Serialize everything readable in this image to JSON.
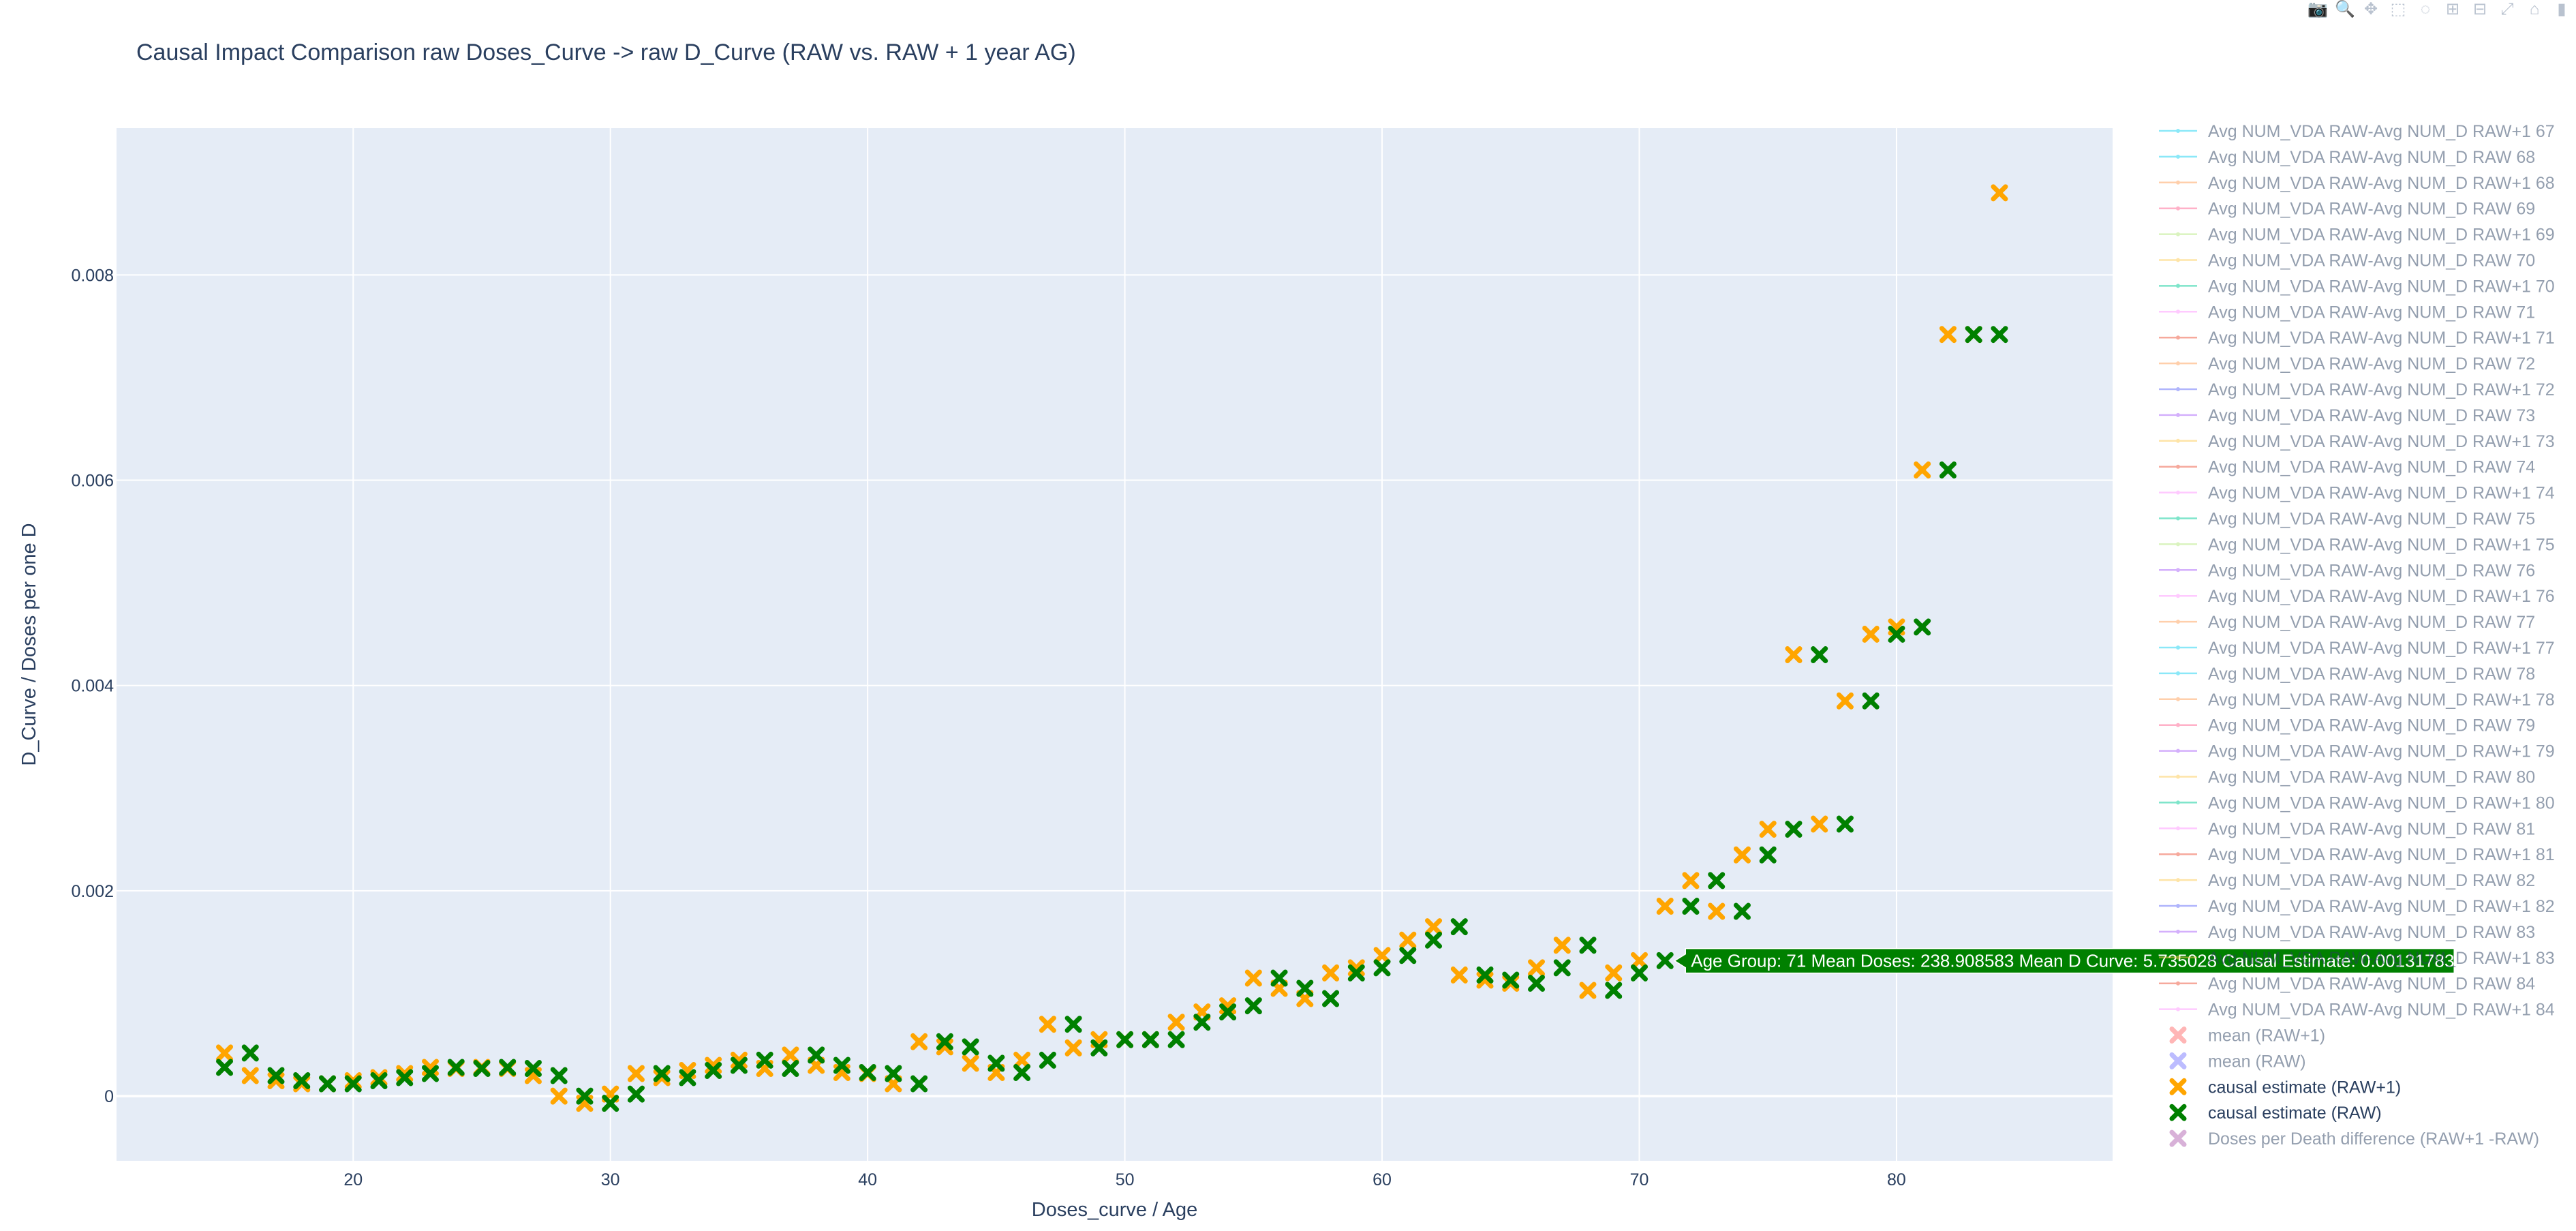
{
  "modebar": {
    "buttons": [
      {
        "name": "camera-icon",
        "glyph": "📷"
      },
      {
        "name": "zoom-icon",
        "glyph": "🔍"
      },
      {
        "name": "pan-icon",
        "glyph": "✥"
      },
      {
        "name": "box-select-icon",
        "glyph": "⬚"
      },
      {
        "name": "lasso-select-icon",
        "glyph": "◌"
      },
      {
        "name": "zoom-in-icon",
        "glyph": "⊞"
      },
      {
        "name": "zoom-out-icon",
        "glyph": "⊟"
      },
      {
        "name": "autoscale-icon",
        "glyph": "⤢"
      },
      {
        "name": "reset-axes-icon",
        "glyph": "⌂"
      },
      {
        "name": "plotly-logo-icon",
        "glyph": "▮"
      }
    ]
  },
  "colors": {
    "plot_bg": "#e5ecf6",
    "orange": "#FFA500",
    "green": "#008000",
    "mean_raw1": "#FF6F6F",
    "mean_raw": "#7B7BFF",
    "diff": "#B366B3",
    "hover_bg": "#008000"
  },
  "chart_data": {
    "type": "scatter",
    "title": "Causal Impact Comparison raw Doses_Curve -> raw D_Curve (RAW vs. RAW + 1 year AG)",
    "xlabel": "Doses_curve / Age",
    "ylabel": "D_Curve / Doses per one D",
    "xlim": [
      10.8,
      88.4
    ],
    "ylim": [
      -0.00063,
      0.00943
    ],
    "x_ticks": [
      20,
      30,
      40,
      50,
      60,
      70,
      80
    ],
    "y_ticks": [
      0,
      0.002,
      0.004,
      0.006,
      0.008
    ],
    "y_tick_labels": [
      "0",
      "0.002",
      "0.004",
      "0.006",
      "0.008"
    ],
    "grid": true,
    "series": [
      {
        "name": "causal estimate (RAW+1)",
        "color": "#FFA500",
        "x": [
          15,
          16,
          17,
          18,
          19,
          20,
          21,
          22,
          23,
          24,
          25,
          26,
          27,
          28,
          29,
          30,
          31,
          32,
          33,
          34,
          35,
          36,
          37,
          38,
          39,
          40,
          41,
          42,
          43,
          44,
          45,
          46,
          47,
          48,
          49,
          50,
          51,
          52,
          53,
          54,
          55,
          56,
          57,
          58,
          59,
          60,
          61,
          62,
          63,
          64,
          65,
          66,
          67,
          68,
          69,
          70,
          71,
          72,
          73,
          74,
          75,
          76,
          77,
          78,
          79,
          80,
          81,
          82,
          83,
          84
        ],
        "y": [
          0.00042,
          0.0002,
          0.00015,
          0.00012,
          0.00012,
          0.00015,
          0.00018,
          0.00022,
          0.00028,
          0.00027,
          0.00028,
          0.00027,
          0.0002,
          0.0,
          -7e-05,
          2e-05,
          0.00022,
          0.00018,
          0.00025,
          0.0003,
          0.00035,
          0.00027,
          0.0004,
          0.0003,
          0.00023,
          0.00022,
          0.00012,
          0.00053,
          0.00048,
          0.00032,
          0.00023,
          0.00035,
          0.0007,
          0.00047,
          0.00055,
          0.00055,
          0.00055,
          0.00072,
          0.00082,
          0.00088,
          0.00115,
          0.00105,
          0.00095,
          0.0012,
          0.00125,
          0.00137,
          0.00152,
          0.00165,
          0.00118,
          0.00113,
          0.0011,
          0.00125,
          0.00147,
          0.00103,
          0.0012,
          0.00132,
          0.00185,
          0.0021,
          0.0018,
          0.00235,
          0.0026,
          0.0043,
          0.00265,
          0.00385,
          0.0045,
          0.00457,
          0.0061,
          0.00742,
          0.00742,
          0.0088
        ]
      },
      {
        "name": "causal estimate (RAW)",
        "color": "#008000",
        "x": [
          15,
          16,
          17,
          18,
          19,
          20,
          21,
          22,
          23,
          24,
          25,
          26,
          27,
          28,
          29,
          30,
          31,
          32,
          33,
          34,
          35,
          36,
          37,
          38,
          39,
          40,
          41,
          42,
          43,
          44,
          45,
          46,
          47,
          48,
          49,
          50,
          51,
          52,
          53,
          54,
          55,
          56,
          57,
          58,
          59,
          60,
          61,
          62,
          63,
          64,
          65,
          66,
          67,
          68,
          69,
          70,
          71,
          72,
          73,
          74,
          75,
          76,
          77,
          78,
          79,
          80,
          81,
          82,
          83,
          84
        ],
        "y": [
          0.00028,
          0.00042,
          0.0002,
          0.00015,
          0.00012,
          0.00012,
          0.00015,
          0.00018,
          0.00022,
          0.00028,
          0.00027,
          0.00028,
          0.00027,
          0.0002,
          0.0,
          -7e-05,
          2e-05,
          0.00022,
          0.00018,
          0.00025,
          0.0003,
          0.00035,
          0.00027,
          0.0004,
          0.0003,
          0.00023,
          0.00022,
          0.00012,
          0.00053,
          0.00048,
          0.00032,
          0.00023,
          0.00035,
          0.0007,
          0.00047,
          0.00055,
          0.00055,
          0.00055,
          0.00072,
          0.00082,
          0.00088,
          0.00115,
          0.00105,
          0.00095,
          0.0012,
          0.00125,
          0.00137,
          0.00152,
          0.00165,
          0.00118,
          0.00113,
          0.0011,
          0.00125,
          0.00147,
          0.00103,
          0.0012,
          0.00132,
          0.00185,
          0.0021,
          0.0018,
          0.00235,
          0.0026,
          0.0043,
          0.00265,
          0.00385,
          0.0045,
          0.00457,
          0.0061,
          0.00742,
          0.00742
        ]
      }
    ],
    "hover": {
      "x": 71,
      "y": 0.00131783,
      "text": "Age Group: 71 Mean Doses: 238.908583 Mean D Curve: 5.735028 Causal Estimate: 0.00131783"
    },
    "legend": {
      "placement": "right",
      "line_entries": [
        {
          "label": "Avg NUM_VDA RAW-Avg NUM_D RAW+1 67",
          "color": "#19D3F3"
        },
        {
          "label": "Avg NUM_VDA RAW-Avg NUM_D RAW 68",
          "color": "#19D3F3"
        },
        {
          "label": "Avg NUM_VDA RAW-Avg NUM_D RAW+1 68",
          "color": "#FFA15A"
        },
        {
          "label": "Avg NUM_VDA RAW-Avg NUM_D RAW 69",
          "color": "#FF6692"
        },
        {
          "label": "Avg NUM_VDA RAW-Avg NUM_D RAW+1 69",
          "color": "#B6E880"
        },
        {
          "label": "Avg NUM_VDA RAW-Avg NUM_D RAW 70",
          "color": "#FECB52"
        },
        {
          "label": "Avg NUM_VDA RAW-Avg NUM_D RAW+1 70",
          "color": "#00CC96"
        },
        {
          "label": "Avg NUM_VDA RAW-Avg NUM_D RAW 71",
          "color": "#FF97FF"
        },
        {
          "label": "Avg NUM_VDA RAW-Avg NUM_D RAW+1 71",
          "color": "#EF553B"
        },
        {
          "label": "Avg NUM_VDA RAW-Avg NUM_D RAW 72",
          "color": "#FFA15A"
        },
        {
          "label": "Avg NUM_VDA RAW-Avg NUM_D RAW+1 72",
          "color": "#636EFA"
        },
        {
          "label": "Avg NUM_VDA RAW-Avg NUM_D RAW 73",
          "color": "#AB63FA"
        },
        {
          "label": "Avg NUM_VDA RAW-Avg NUM_D RAW+1 73",
          "color": "#FECB52"
        },
        {
          "label": "Avg NUM_VDA RAW-Avg NUM_D RAW 74",
          "color": "#EF553B"
        },
        {
          "label": "Avg NUM_VDA RAW-Avg NUM_D RAW+1 74",
          "color": "#FF97FF"
        },
        {
          "label": "Avg NUM_VDA RAW-Avg NUM_D RAW 75",
          "color": "#00CC96"
        },
        {
          "label": "Avg NUM_VDA RAW-Avg NUM_D RAW+1 75",
          "color": "#B6E880"
        },
        {
          "label": "Avg NUM_VDA RAW-Avg NUM_D RAW 76",
          "color": "#AB63FA"
        },
        {
          "label": "Avg NUM_VDA RAW-Avg NUM_D RAW+1 76",
          "color": "#FF97FF"
        },
        {
          "label": "Avg NUM_VDA RAW-Avg NUM_D RAW 77",
          "color": "#FFA15A"
        },
        {
          "label": "Avg NUM_VDA RAW-Avg NUM_D RAW+1 77",
          "color": "#19D3F3"
        },
        {
          "label": "Avg NUM_VDA RAW-Avg NUM_D RAW 78",
          "color": "#19D3F3"
        },
        {
          "label": "Avg NUM_VDA RAW-Avg NUM_D RAW+1 78",
          "color": "#FFA15A"
        },
        {
          "label": "Avg NUM_VDA RAW-Avg NUM_D RAW 79",
          "color": "#FF6692"
        },
        {
          "label": "Avg NUM_VDA RAW-Avg NUM_D RAW+1 79",
          "color": "#AB63FA"
        },
        {
          "label": "Avg NUM_VDA RAW-Avg NUM_D RAW 80",
          "color": "#FECB52"
        },
        {
          "label": "Avg NUM_VDA RAW-Avg NUM_D RAW+1 80",
          "color": "#00CC96"
        },
        {
          "label": "Avg NUM_VDA RAW-Avg NUM_D RAW 81",
          "color": "#FF97FF"
        },
        {
          "label": "Avg NUM_VDA RAW-Avg NUM_D RAW+1 81",
          "color": "#EF553B"
        },
        {
          "label": "Avg NUM_VDA RAW-Avg NUM_D RAW 82",
          "color": "#FECB52"
        },
        {
          "label": "Avg NUM_VDA RAW-Avg NUM_D RAW+1 82",
          "color": "#636EFA"
        },
        {
          "label": "Avg NUM_VDA RAW-Avg NUM_D RAW 83",
          "color": "#AB63FA"
        },
        {
          "label": "Avg NUM_VDA RAW-Avg NUM_D RAW+1 83",
          "color": "#FECB52"
        },
        {
          "label": "Avg NUM_VDA RAW-Avg NUM_D RAW 84",
          "color": "#EF553B"
        },
        {
          "label": "Avg NUM_VDA RAW-Avg NUM_D RAW+1 84",
          "color": "#FF97FF"
        }
      ],
      "marker_entries": [
        {
          "label": "mean (RAW+1)",
          "color": "#FF6F6F",
          "active": false
        },
        {
          "label": "mean (RAW)",
          "color": "#7B7BFF",
          "active": false
        },
        {
          "label": "causal estimate (RAW+1)",
          "color": "#FFA500",
          "active": true
        },
        {
          "label": "causal estimate (RAW)",
          "color": "#008000",
          "active": true
        },
        {
          "label": "Doses per Death difference (RAW+1 -RAW)",
          "color": "#B366B3",
          "active": false
        }
      ]
    }
  }
}
